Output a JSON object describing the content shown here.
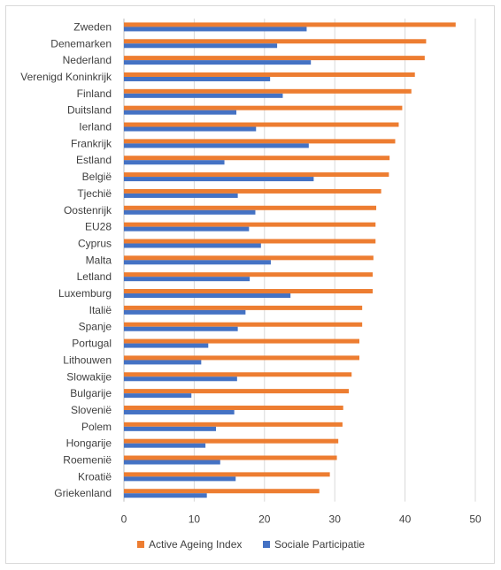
{
  "chart_data": {
    "type": "bar",
    "orientation": "horizontal",
    "title": "",
    "xlabel": "",
    "ylabel": "",
    "xlim": [
      0,
      50
    ],
    "x_ticks": [
      "0",
      "10",
      "20",
      "30",
      "40",
      "50"
    ],
    "grid": "vertical",
    "legend_position": "bottom",
    "categories": [
      "Zweden",
      "Denemarken",
      "Nederland",
      "Verenigd Koninkrijk",
      "Finland",
      "Duitsland",
      "Ierland",
      "Frankrijk",
      "Estland",
      "België",
      "Tjechië",
      "Oostenrijk",
      "EU28",
      "Cyprus",
      "Malta",
      "Letland",
      "Luxemburg",
      "Italië",
      "Spanje",
      "Portugal",
      "Lithouwen",
      "Slowakije",
      "Bulgarije",
      "Slovenië",
      "Polem",
      "Hongarije",
      "Roemenië",
      "Kroatië",
      "Griekenland"
    ],
    "series": [
      {
        "name": "Active Ageing Index",
        "color": "#ED7D31",
        "values": [
          47.2,
          43.0,
          42.8,
          41.4,
          40.9,
          39.6,
          39.1,
          38.6,
          37.8,
          37.7,
          36.6,
          35.9,
          35.8,
          35.8,
          35.5,
          35.4,
          35.4,
          33.9,
          33.9,
          33.5,
          33.5,
          32.4,
          32.0,
          31.2,
          31.1,
          30.5,
          30.3,
          29.3,
          27.8
        ]
      },
      {
        "name": "Sociale Participatie",
        "color": "#4472C4",
        "values": [
          26.0,
          21.8,
          26.6,
          20.8,
          22.6,
          16.0,
          18.8,
          26.3,
          14.3,
          27.0,
          16.2,
          18.7,
          17.8,
          19.5,
          20.9,
          17.9,
          23.7,
          17.3,
          16.2,
          12.0,
          11.0,
          16.1,
          9.6,
          15.7,
          13.1,
          11.6,
          13.7,
          15.9,
          11.8
        ]
      }
    ]
  }
}
